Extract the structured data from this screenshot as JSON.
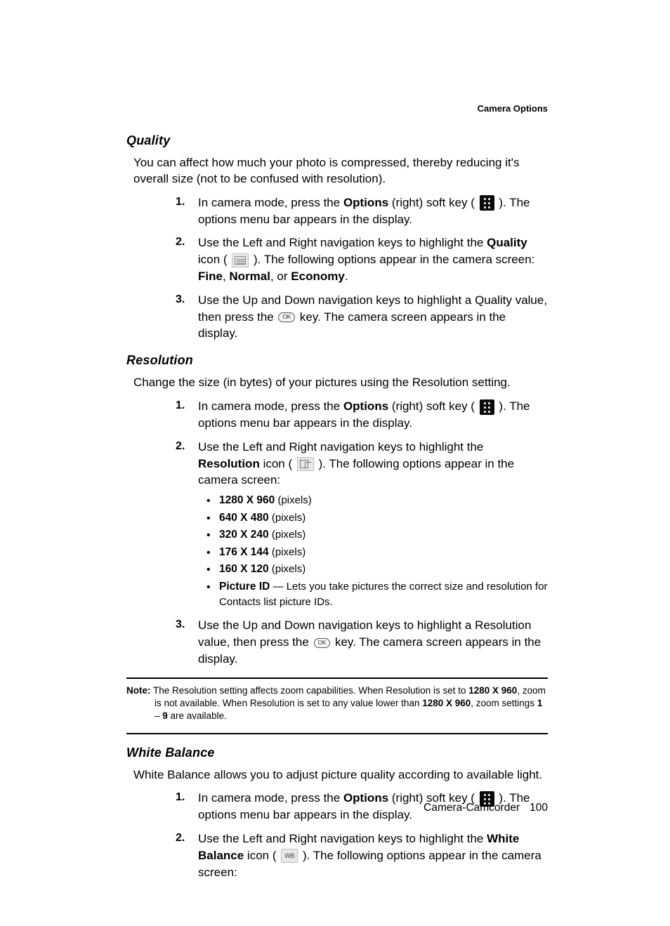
{
  "header": {
    "section_label": "Camera Options"
  },
  "quality": {
    "title": "Quality",
    "intro": "You can affect how much your photo is compressed, thereby reducing it's overall size (not to be confused with resolution).",
    "steps": [
      {
        "num": "1.",
        "pre": "In camera mode, press the ",
        "bold1": "Options",
        "mid": " (right) soft key ( ",
        "icon": "camera",
        "post": " ). The options menu bar appears in the display."
      },
      {
        "num": "2.",
        "pre": "Use the Left and Right navigation keys to highlight the ",
        "bold1": "Quality",
        "mid": " icon ( ",
        "icon": "quality",
        "post": " ). The following options appear in the camera screen: ",
        "tail_bold": [
          "Fine",
          "Normal",
          "Economy"
        ],
        "tail_sep": [
          ", ",
          ", or ",
          "."
        ]
      },
      {
        "num": "3.",
        "pre": "Use the Up and Down navigation keys to highlight a Quality value, then press the ",
        "icon": "ok",
        "post": " key. The camera screen appears in the display."
      }
    ]
  },
  "resolution": {
    "title": "Resolution",
    "intro": "Change the size (in bytes) of your pictures using the Resolution setting.",
    "steps": [
      {
        "num": "1.",
        "pre": "In camera mode, press the ",
        "bold1": "Options",
        "mid": " (right) soft key ( ",
        "icon": "camera",
        "post": " ). The options menu bar appears in the display."
      },
      {
        "num": "2.",
        "pre": "Use the Left and Right navigation keys to highlight the ",
        "bold1": "Resolution",
        "mid": " icon ( ",
        "icon": "res",
        "post": " ). The following options appear in the camera screen:",
        "sublist": [
          {
            "bold": "1280 X 960",
            "rest": " (pixels)"
          },
          {
            "bold": "640 X 480",
            "rest": " (pixels)"
          },
          {
            "bold": "320 X 240",
            "rest": " (pixels)"
          },
          {
            "bold": "176 X 144",
            "rest": " (pixels)"
          },
          {
            "bold": "160 X 120",
            "rest": " (pixels)"
          },
          {
            "bold": "Picture ID",
            "rest": " — Lets you take pictures the correct size and resolution for Contacts list picture IDs."
          }
        ]
      },
      {
        "num": "3.",
        "pre": "Use the Up and Down navigation keys to highlight a Resolution value, then press the ",
        "icon": "ok",
        "post": " key. The camera screen appears in the display."
      }
    ],
    "note": {
      "label": "Note:",
      "parts": [
        " The Resolution setting affects zoom capabilities. When Resolution is set to ",
        "1280 X 960",
        ", zoom is not available. When Resolution is set to any value lower than ",
        "1280 X 960",
        ", zoom settings ",
        "1",
        " – ",
        "9",
        " are available."
      ],
      "bold_idx": [
        1,
        3,
        5,
        7
      ]
    }
  },
  "white_balance": {
    "title": "White Balance",
    "intro": "White Balance allows you to adjust picture quality according to available light.",
    "steps": [
      {
        "num": "1.",
        "pre": "In camera mode, press the ",
        "bold1": "Options",
        "mid": " (right) soft key ( ",
        "icon": "camera",
        "post": " ). The options menu bar appears in the display."
      },
      {
        "num": "2.",
        "pre": "Use the Left and Right navigation keys to highlight the ",
        "bold1": "White Balance",
        "mid": " icon ( ",
        "icon": "wb",
        "post": " ). The following options appear in the camera screen:"
      }
    ]
  },
  "footer": {
    "chapter": "Camera-Camcorder",
    "page": "100"
  },
  "icons": {
    "ok_label": "OK"
  }
}
